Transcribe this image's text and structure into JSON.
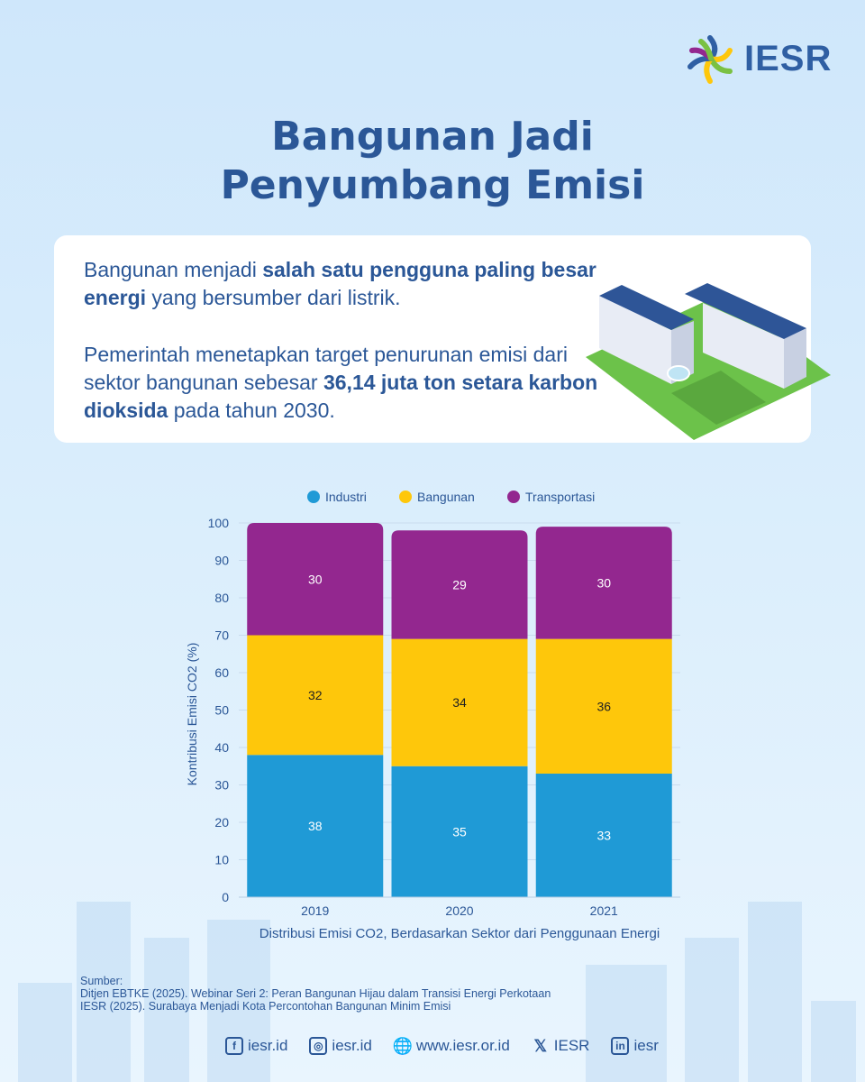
{
  "brand": {
    "name": "IESR"
  },
  "title": {
    "line1": "Bangunan Jadi",
    "line2": "Penyumbang Emisi"
  },
  "card": {
    "p1": [
      {
        "t": "Bangunan menjadi ",
        "b": false
      },
      {
        "t": "salah satu pengguna paling besar energi",
        "b": true
      },
      {
        "t": " yang bersumber dari listrik.",
        "b": false
      }
    ],
    "p2": [
      {
        "t": "Pemerintah menetapkan target penurunan emisi dari sektor bangunan sebesar ",
        "b": false
      },
      {
        "t": "36,14 juta ton setara karbon dioksida",
        "b": true
      },
      {
        "t": " pada tahun 2030.",
        "b": false
      }
    ]
  },
  "chart_data": {
    "type": "bar",
    "stacked": true,
    "categories": [
      "2019",
      "2020",
      "2021"
    ],
    "series": [
      {
        "name": "Industri",
        "color": "#1f9ad6",
        "values": [
          38,
          35,
          33
        ]
      },
      {
        "name": "Bangunan",
        "color": "#fec70b",
        "values": [
          32,
          34,
          36
        ]
      },
      {
        "name": "Transportasi",
        "color": "#93278f",
        "values": [
          30,
          29,
          30
        ]
      }
    ],
    "ylabel": "Kontribusi Emisi CO2 (%)",
    "xlabel": "Distribusi Emisi CO2, Berdasarkan Sektor dari Penggunaan Energi",
    "ylim": [
      0,
      100
    ],
    "yticks": [
      0,
      10,
      20,
      30,
      40,
      50,
      60,
      70,
      80,
      90,
      100
    ],
    "legend": "top-center"
  },
  "sources": {
    "label": "Sumber:",
    "items": [
      "Ditjen EBTKE (2025). Webinar Seri 2: Peran Bangunan Hijau dalam Transisi Energi Perkotaan",
      "IESR (2025). Surabaya Menjadi Kota Percontohan Bangunan Minim Emisi"
    ]
  },
  "footer": [
    {
      "icon": "facebook-icon",
      "g": "f",
      "label": "iesr.id"
    },
    {
      "icon": "instagram-icon",
      "g": "◎",
      "label": "iesr.id"
    },
    {
      "icon": "globe-icon",
      "g": "🌐",
      "label": "www.iesr.or.id"
    },
    {
      "icon": "x-icon",
      "g": "𝕏",
      "label": "IESR"
    },
    {
      "icon": "linkedin-icon",
      "g": "in",
      "label": "iesr"
    }
  ]
}
